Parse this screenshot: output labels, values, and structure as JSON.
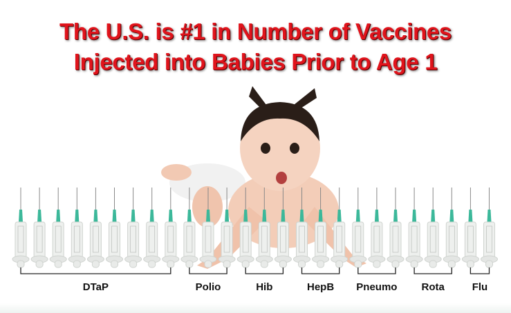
{
  "title": {
    "line1": "The U.S. is #1 in Number of Vaccines",
    "line2": "Injected into Babies Prior to Age 1"
  },
  "colors": {
    "title": "#e0141c",
    "needle_hub": "#3cb89a",
    "bracket": "#222222"
  },
  "image": "baby-crawling-photo",
  "groups": [
    {
      "label": "DTaP",
      "count": 9
    },
    {
      "label": "Polio",
      "count": 3
    },
    {
      "label": "Hib",
      "count": 3
    },
    {
      "label": "HepB",
      "count": 3
    },
    {
      "label": "Pneumo",
      "count": 3
    },
    {
      "label": "Rota",
      "count": 3
    },
    {
      "label": "Flu",
      "count": 2
    }
  ]
}
